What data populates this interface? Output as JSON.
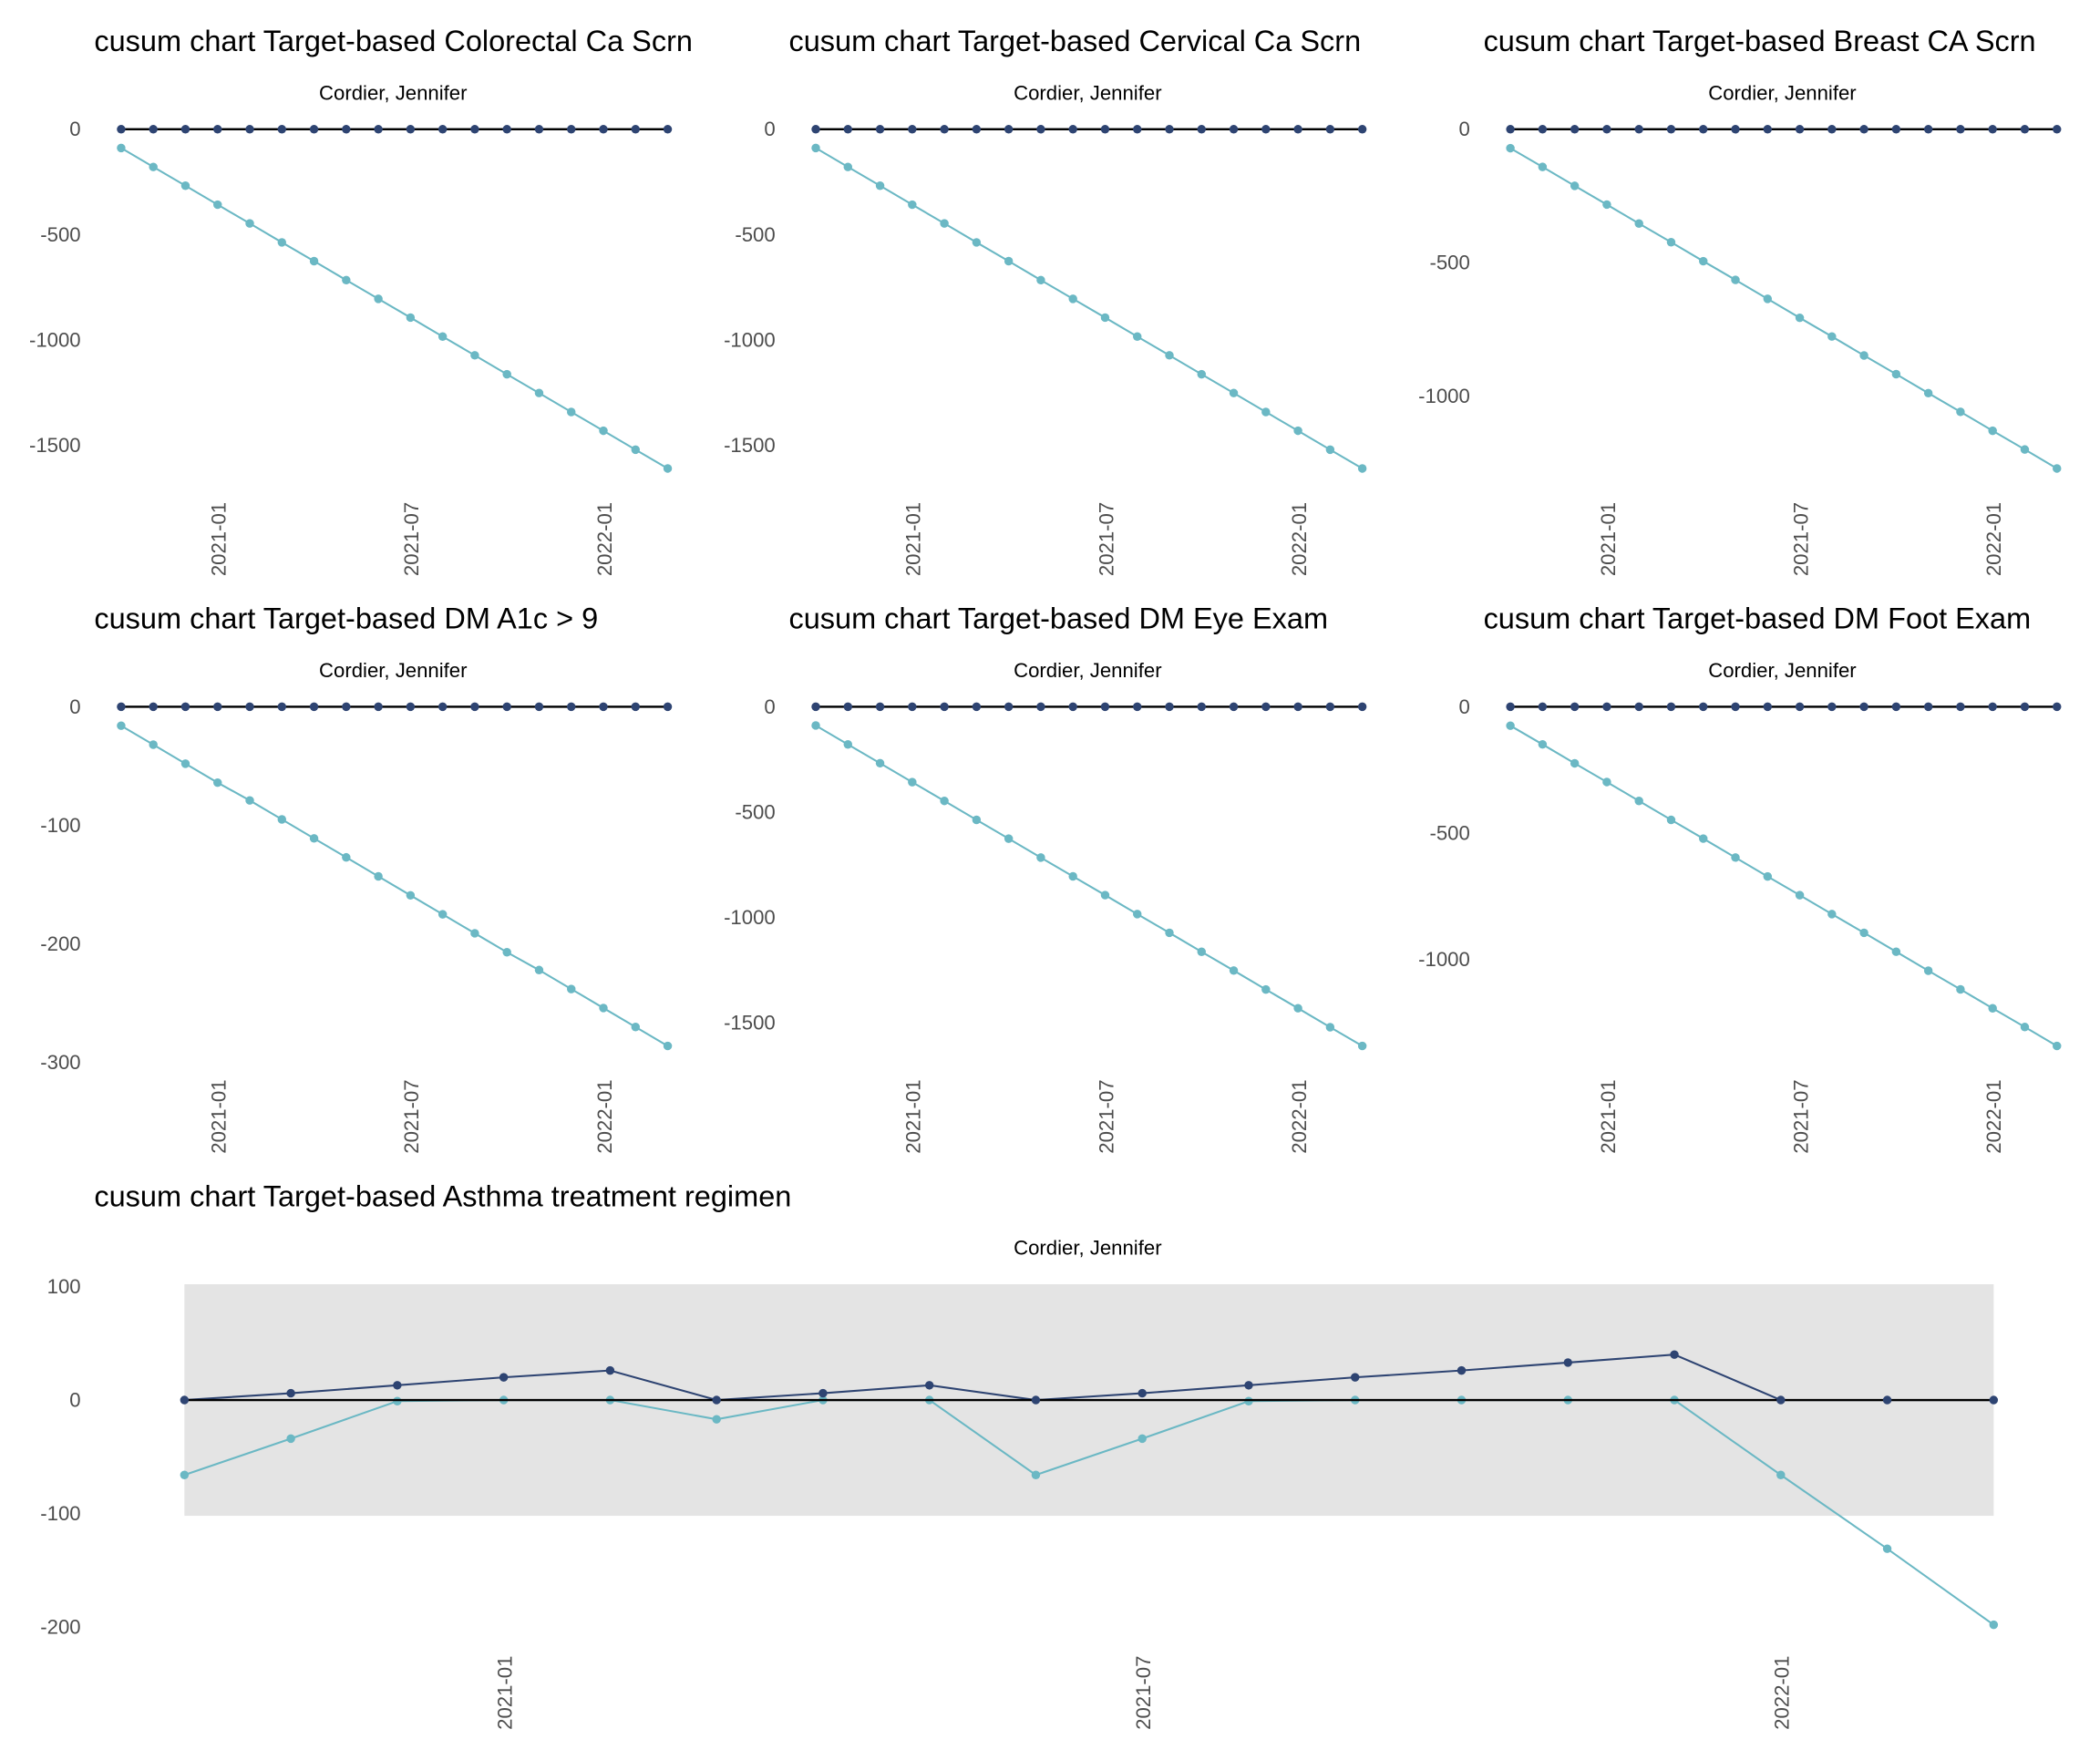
{
  "colors": {
    "upper": "#2e4472",
    "lower": "#6bb8c4",
    "target_line": "#000000",
    "band": "#e4e4e4"
  },
  "chart_data": [
    {
      "type": "line",
      "title": "cusum chart Target-based  Colorectal Ca Scrn",
      "subtitle": "Cordier, Jennifer",
      "x": [
        "2020-10",
        "2020-11",
        "2020-12",
        "2021-01",
        "2021-02",
        "2021-03",
        "2021-04",
        "2021-05",
        "2021-06",
        "2021-07",
        "2021-08",
        "2021-09",
        "2021-10",
        "2021-11",
        "2021-12",
        "2022-01",
        "2022-02",
        "2022-03"
      ],
      "xticks": [
        "2021-01",
        "2021-07",
        "2022-01"
      ],
      "yticks": [
        0,
        -500,
        -1000,
        -1500
      ],
      "ylim": [
        -1610,
        0
      ],
      "grid": false,
      "series": [
        {
          "values": [
            0,
            0,
            0,
            0,
            0,
            0,
            0,
            0,
            0,
            0,
            0,
            0,
            0,
            0,
            0,
            0,
            0,
            0
          ]
        },
        {
          "values": [
            -89,
            -179,
            -268,
            -358,
            -447,
            -537,
            -626,
            -716,
            -805,
            -894,
            -984,
            -1073,
            -1163,
            -1252,
            -1342,
            -1431,
            -1521,
            -1610
          ]
        }
      ]
    },
    {
      "type": "line",
      "title": "cusum chart Target-based  Cervical Ca Scrn",
      "subtitle": "Cordier, Jennifer",
      "x": [
        "2020-10",
        "2020-11",
        "2020-12",
        "2021-01",
        "2021-02",
        "2021-03",
        "2021-04",
        "2021-05",
        "2021-06",
        "2021-07",
        "2021-08",
        "2021-09",
        "2021-10",
        "2021-11",
        "2021-12",
        "2022-01",
        "2022-02",
        "2022-03"
      ],
      "xticks": [
        "2021-01",
        "2021-07",
        "2022-01"
      ],
      "yticks": [
        0,
        -500,
        -1000,
        -1500
      ],
      "ylim": [
        -1610,
        0
      ],
      "grid": false,
      "series": [
        {
          "values": [
            0,
            0,
            0,
            0,
            0,
            0,
            0,
            0,
            0,
            0,
            0,
            0,
            0,
            0,
            0,
            0,
            0,
            0
          ]
        },
        {
          "values": [
            -89,
            -179,
            -268,
            -358,
            -447,
            -537,
            -626,
            -716,
            -805,
            -894,
            -984,
            -1073,
            -1163,
            -1252,
            -1342,
            -1431,
            -1521,
            -1610
          ]
        }
      ]
    },
    {
      "type": "line",
      "title": "cusum chart Target-based  Breast CA Scrn",
      "subtitle": "Cordier, Jennifer",
      "x": [
        "2020-10",
        "2020-11",
        "2020-12",
        "2021-01",
        "2021-02",
        "2021-03",
        "2021-04",
        "2021-05",
        "2021-06",
        "2021-07",
        "2021-08",
        "2021-09",
        "2021-10",
        "2021-11",
        "2021-12",
        "2022-01",
        "2022-02",
        "2022-03"
      ],
      "xticks": [
        "2021-01",
        "2021-07",
        "2022-01"
      ],
      "yticks": [
        0,
        -500,
        -1000
      ],
      "ylim": [
        -1270,
        0
      ],
      "grid": false,
      "series": [
        {
          "values": [
            0,
            0,
            0,
            0,
            0,
            0,
            0,
            0,
            0,
            0,
            0,
            0,
            0,
            0,
            0,
            0,
            0,
            0
          ]
        },
        {
          "values": [
            -71,
            -141,
            -212,
            -282,
            -353,
            -423,
            -494,
            -564,
            -635,
            -706,
            -776,
            -847,
            -917,
            -988,
            -1058,
            -1129,
            -1199,
            -1270
          ]
        }
      ]
    },
    {
      "type": "line",
      "title": "cusum chart Target-based  DM A1c > 9",
      "subtitle": "Cordier, Jennifer",
      "x": [
        "2020-10",
        "2020-11",
        "2020-12",
        "2021-01",
        "2021-02",
        "2021-03",
        "2021-04",
        "2021-05",
        "2021-06",
        "2021-07",
        "2021-08",
        "2021-09",
        "2021-10",
        "2021-11",
        "2021-12",
        "2022-01",
        "2022-02",
        "2022-03"
      ],
      "xticks": [
        "2021-01",
        "2021-07",
        "2022-01"
      ],
      "yticks": [
        0,
        -100,
        -200,
        -300
      ],
      "ylim": [
        -286,
        0
      ],
      "grid": false,
      "series": [
        {
          "values": [
            0,
            0,
            0,
            0,
            0,
            0,
            0,
            0,
            0,
            0,
            0,
            0,
            0,
            0,
            0,
            0,
            0,
            0
          ]
        },
        {
          "values": [
            -16,
            -32,
            -48,
            -64,
            -79,
            -95,
            -111,
            -127,
            -143,
            -159,
            -175,
            -191,
            -207,
            -222,
            -238,
            -254,
            -270,
            -286
          ]
        }
      ]
    },
    {
      "type": "line",
      "title": "cusum chart Target-based  DM Eye Exam",
      "subtitle": "Cordier, Jennifer",
      "x": [
        "2020-10",
        "2020-11",
        "2020-12",
        "2021-01",
        "2021-02",
        "2021-03",
        "2021-04",
        "2021-05",
        "2021-06",
        "2021-07",
        "2021-08",
        "2021-09",
        "2021-10",
        "2021-11",
        "2021-12",
        "2022-01",
        "2022-02",
        "2022-03"
      ],
      "xticks": [
        "2021-01",
        "2021-07",
        "2022-01"
      ],
      "yticks": [
        0,
        -500,
        -1000,
        -1500
      ],
      "ylim": [
        -1610,
        0
      ],
      "grid": false,
      "series": [
        {
          "values": [
            0,
            0,
            0,
            0,
            0,
            0,
            0,
            0,
            0,
            0,
            0,
            0,
            0,
            0,
            0,
            0,
            0,
            0
          ]
        },
        {
          "values": [
            -89,
            -179,
            -268,
            -358,
            -447,
            -537,
            -626,
            -716,
            -805,
            -894,
            -984,
            -1073,
            -1163,
            -1252,
            -1342,
            -1431,
            -1521,
            -1610
          ]
        }
      ]
    },
    {
      "type": "line",
      "title": "cusum chart Target-based  DM Foot Exam",
      "subtitle": "Cordier, Jennifer",
      "x": [
        "2020-10",
        "2020-11",
        "2020-12",
        "2021-01",
        "2021-02",
        "2021-03",
        "2021-04",
        "2021-05",
        "2021-06",
        "2021-07",
        "2021-08",
        "2021-09",
        "2021-10",
        "2021-11",
        "2021-12",
        "2022-01",
        "2022-02",
        "2022-03"
      ],
      "xticks": [
        "2021-01",
        "2021-07",
        "2022-01"
      ],
      "yticks": [
        0,
        -500,
        -1000
      ],
      "ylim": [
        -1343,
        0
      ],
      "grid": false,
      "series": [
        {
          "values": [
            0,
            0,
            0,
            0,
            0,
            0,
            0,
            0,
            0,
            0,
            0,
            0,
            0,
            0,
            0,
            0,
            0,
            0
          ]
        },
        {
          "values": [
            -75,
            -149,
            -224,
            -298,
            -373,
            -448,
            -522,
            -597,
            -672,
            -746,
            -821,
            -895,
            -970,
            -1045,
            -1119,
            -1194,
            -1268,
            -1343
          ]
        }
      ]
    },
    {
      "type": "line",
      "title": "cusum chart Target-based  Asthma treatment regimen",
      "subtitle": "Cordier, Jennifer",
      "x": [
        "2020-10",
        "2020-11",
        "2020-12",
        "2021-01",
        "2021-02",
        "2021-03",
        "2021-04",
        "2021-05",
        "2021-06",
        "2021-07",
        "2021-08",
        "2021-09",
        "2021-10",
        "2021-11",
        "2021-12",
        "2022-01",
        "2022-02",
        "2022-03"
      ],
      "xticks": [
        "2021-01",
        "2021-07",
        "2022-01"
      ],
      "yticks": [
        100,
        0,
        -100,
        -200
      ],
      "ylim": [
        -198,
        102
      ],
      "band": [
        -102,
        102
      ],
      "grid": false,
      "series": [
        {
          "values": [
            0,
            6,
            13,
            20,
            26,
            0,
            6,
            13,
            0,
            6,
            13,
            20,
            26,
            33,
            40,
            0,
            0,
            0
          ]
        },
        {
          "values": [
            -66,
            -34,
            -1,
            0,
            0,
            -17,
            0,
            0,
            -66,
            -34,
            -1,
            0,
            0,
            0,
            0,
            -66,
            -131,
            -198
          ]
        }
      ]
    }
  ]
}
